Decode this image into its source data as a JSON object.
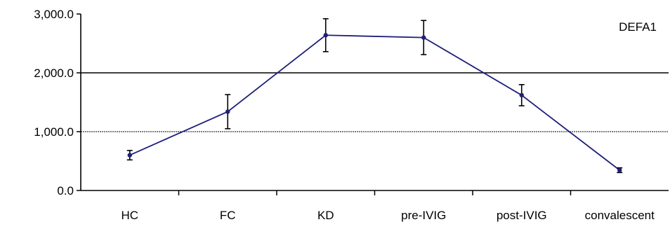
{
  "chart_data": {
    "type": "line",
    "categories": [
      "HC",
      "FC",
      "KD",
      "pre-IVIG",
      "post-IVIG",
      "convalescent"
    ],
    "series": [
      {
        "name": "DEFA1",
        "values": [
          600,
          1340,
          2640,
          2600,
          1620,
          345
        ],
        "error": [
          80,
          290,
          280,
          290,
          180,
          40
        ],
        "color": "#1f1f7a"
      }
    ],
    "y_ticks": [
      "0.0",
      "1,000.0",
      "2,000.0",
      "3,000.0"
    ],
    "ylim": [
      0,
      3000
    ],
    "grid": true,
    "legend_position": "top-right",
    "title": "",
    "xlabel": "",
    "ylabel": ""
  }
}
